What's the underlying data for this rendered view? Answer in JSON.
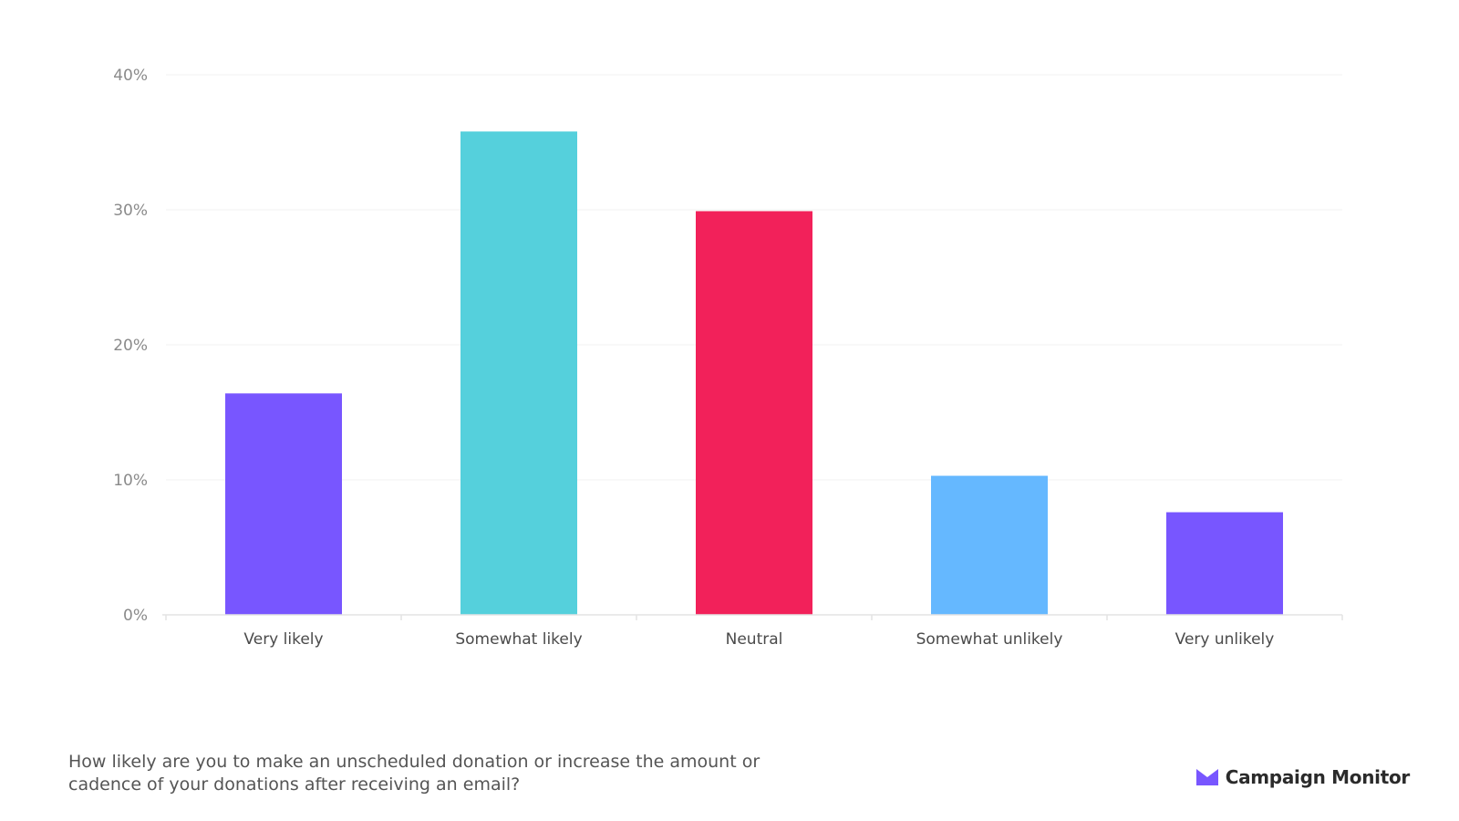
{
  "caption": "How likely are you to make an unscheduled donation or increase the amount or cadence of your donations after receiving an email?",
  "brand": {
    "name": "Campaign Monitor",
    "icon": "envelope-logo-icon",
    "icon_color": "#7856ff"
  },
  "chart_data": {
    "type": "bar",
    "title": "",
    "xlabel": "",
    "ylabel": "",
    "categories": [
      "Very likely",
      "Somewhat likely",
      "Neutral",
      "Somewhat unlikely",
      "Very unlikely"
    ],
    "values": [
      16.4,
      35.8,
      29.9,
      10.3,
      7.6
    ],
    "colors": [
      "#7856ff",
      "#55d0dc",
      "#f2215a",
      "#65b8ff",
      "#7856ff"
    ],
    "ylim": [
      0,
      40
    ],
    "yticks": [
      0,
      10,
      20,
      30,
      40
    ],
    "ytick_labels": [
      "0%",
      "10%",
      "20%",
      "30%",
      "40%"
    ],
    "value_unit": "%",
    "grid": true,
    "legend": "none"
  }
}
